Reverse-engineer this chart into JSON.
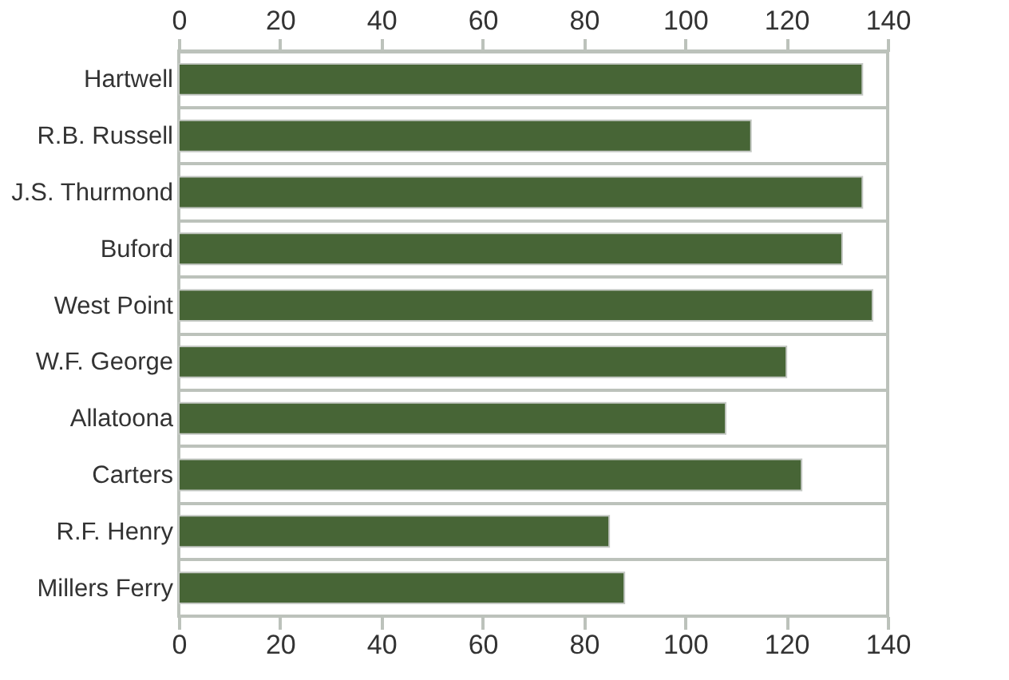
{
  "chart_data": {
    "type": "bar",
    "orientation": "horizontal",
    "categories": [
      "Hartwell",
      "R.B. Russell",
      "J.S. Thurmond",
      "Buford",
      "West Point",
      "W.F. George",
      "Allatoona",
      "Carters",
      "R.F. Henry",
      "Millers Ferry"
    ],
    "values": [
      135,
      113,
      135,
      131,
      137,
      120,
      108,
      123,
      85,
      88
    ],
    "color": "#476536",
    "xlim": [
      0,
      140
    ],
    "xticks": [
      0,
      20,
      40,
      60,
      80,
      100,
      120,
      140
    ],
    "x2lim": [
      0,
      140
    ],
    "x2ticks": [
      0,
      20,
      40,
      60,
      80,
      100,
      120,
      140
    ],
    "grid": "y"
  }
}
